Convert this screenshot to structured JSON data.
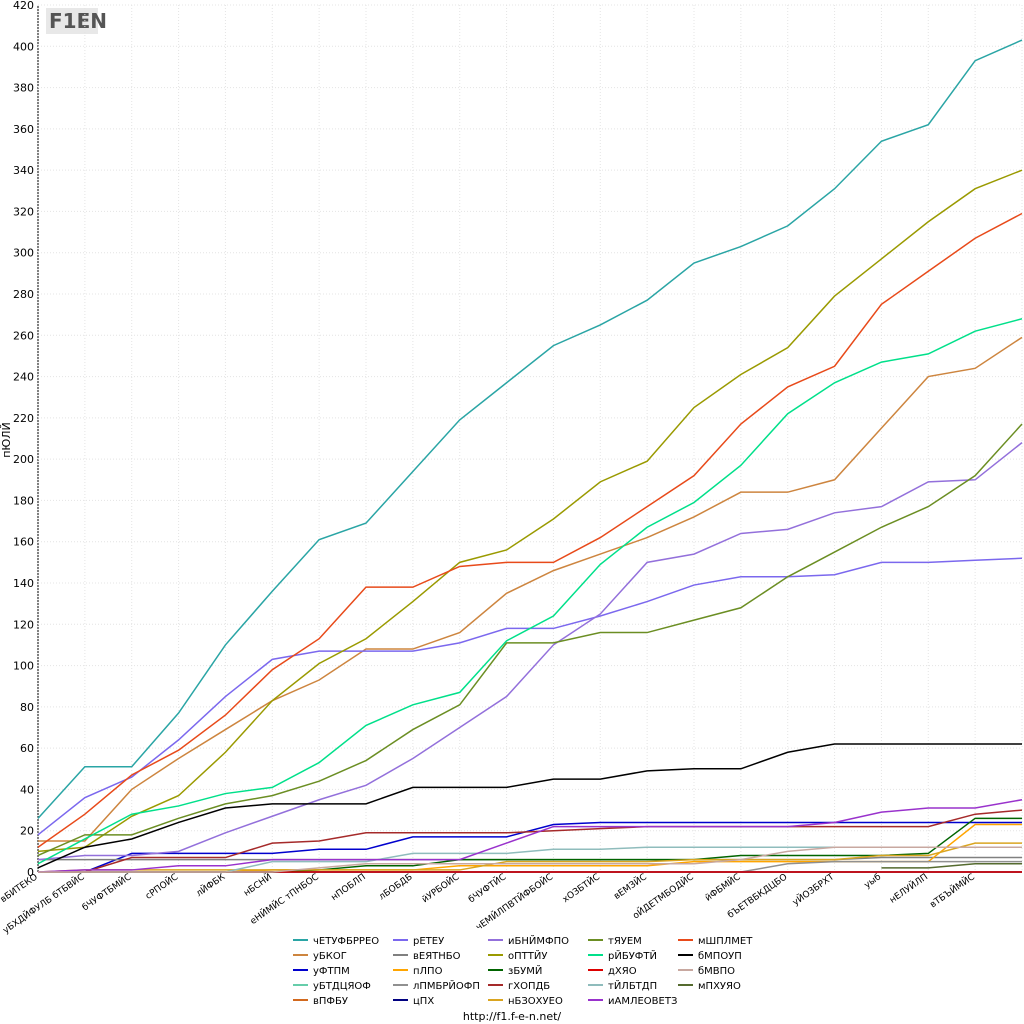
{
  "chart_data": {
    "type": "line",
    "logo": "F1EN",
    "y_label": "пЮЛЙ",
    "footer": "http://f1.f-e-n.net/",
    "grid": true,
    "ylim": [
      0,
      420
    ],
    "yticks": [
      0,
      20,
      40,
      60,
      80,
      100,
      120,
      140,
      160,
      180,
      200,
      220,
      240,
      260,
      280,
      300,
      320,
      340,
      360,
      380,
      400,
      420
    ],
    "categories": [
      "вБИТЕКО",
      "уБХДЙФУЛБ бТБВЙС",
      "бЧУФТБМЙС",
      "сРПОЙС",
      "лЙФБК",
      "нБСНЙ",
      "еНЙМЙС тПНБОС",
      "нПОБЛП",
      "лБОБДБ",
      "йУРБОЙС",
      "бЧУФТЙС",
      "чЕМЙЛПВТЙФБОЙС",
      "хОЗБТЙС",
      "вЕМЗЙС",
      "оЙДЕТМБОДЙС",
      "йФБМЙС",
      "бЪЕТВБКДЦБО",
      "уЙОЗБРХТ",
      "уыб",
      "нЕЛУЙЛП",
      "вТБЪЙМЙС",
      null
    ],
    "series": [
      {
        "name": "чЕТУФБРРЕО",
        "color": "#2aa5a5",
        "values": [
          26,
          51,
          51,
          77,
          110,
          136,
          161,
          169,
          194,
          219,
          237,
          255,
          265,
          277,
          295,
          303,
          313,
          331,
          354,
          362,
          393,
          403
        ]
      },
      {
        "name": "уБКОГ",
        "color": "#cd853f",
        "values": [
          15,
          15,
          40,
          55,
          69,
          83,
          93,
          108,
          108,
          116,
          135,
          146,
          154,
          162,
          172,
          184,
          184,
          190,
          215,
          240,
          244,
          259
        ]
      },
      {
        "name": "уФТПМ",
        "color": "#0000cd",
        "values": [
          0,
          0,
          9,
          9,
          9,
          9,
          11,
          11,
          17,
          17,
          17,
          23,
          24,
          24,
          24,
          24,
          24,
          24,
          24,
          24,
          24,
          24
        ]
      },
      {
        "name": "уБТДЦЯОФ",
        "color": "#66cdaa",
        "values": [
          0,
          0,
          0,
          0,
          0,
          0,
          0,
          0,
          0,
          0,
          0,
          0,
          0,
          0,
          0,
          0,
          0,
          0,
          0,
          0,
          0,
          0
        ]
      },
      {
        "name": "вПФБУ",
        "color": "#d2691e",
        "values": [
          0,
          0,
          0,
          0,
          0,
          0,
          0,
          0,
          0,
          0,
          0,
          0,
          0,
          0,
          0,
          0,
          0,
          0,
          0,
          0,
          0,
          0
        ]
      },
      {
        "name": "рЕТЕУ",
        "color": "#7b68ee",
        "values": [
          18,
          36,
          46,
          64,
          85,
          103,
          107,
          107,
          107,
          111,
          118,
          118,
          124,
          131,
          139,
          143,
          143,
          144,
          150,
          150,
          151,
          152
        ]
      },
      {
        "name": "вЕЯТНБО",
        "color": "#808080",
        "values": [
          6,
          6,
          6,
          6,
          6,
          6,
          6,
          6,
          6,
          6,
          6,
          6,
          6,
          6,
          6,
          6,
          6,
          6,
          7,
          7,
          7,
          7
        ]
      },
      {
        "name": "пЛПО",
        "color": "#ffa500",
        "values": [
          0,
          0,
          0,
          0,
          0,
          1,
          1,
          1,
          1,
          3,
          3,
          3,
          3,
          3,
          5,
          5,
          5,
          5,
          5,
          5,
          23,
          23
        ]
      },
      {
        "name": "лПМБРЙОФП",
        "color": "#909090",
        "values": [
          null,
          null,
          null,
          null,
          null,
          null,
          null,
          null,
          null,
          null,
          null,
          null,
          null,
          null,
          null,
          0,
          4,
          5,
          5,
          5,
          5,
          5
        ]
      },
      {
        "name": "цПХ",
        "color": "#000080",
        "values": [
          0,
          0,
          0,
          0,
          0,
          0,
          0,
          0,
          0,
          0,
          0,
          0,
          0,
          0,
          0,
          0,
          0,
          0,
          0,
          0,
          0,
          0
        ]
      },
      {
        "name": "иБНЙМФПО",
        "color": "#9370db",
        "values": [
          6,
          8,
          8,
          10,
          19,
          27,
          35,
          42,
          55,
          70,
          85,
          110,
          125,
          150,
          154,
          164,
          166,
          174,
          177,
          189,
          190,
          208
        ]
      },
      {
        "name": "оПТТЙУ",
        "color": "#9a9a00",
        "values": [
          10,
          12,
          27,
          37,
          58,
          83,
          101,
          113,
          131,
          150,
          156,
          171,
          189,
          199,
          225,
          241,
          254,
          279,
          297,
          315,
          331,
          340
        ]
      },
      {
        "name": "зБУМЙ",
        "color": "#006400",
        "values": [
          0,
          0,
          0,
          0,
          0,
          0,
          1,
          3,
          3,
          6,
          6,
          6,
          6,
          6,
          6,
          8,
          8,
          8,
          8,
          9,
          26,
          26
        ]
      },
      {
        "name": "гХОПДБ",
        "color": "#a52a2a",
        "values": [
          0,
          0,
          7,
          7,
          7,
          14,
          15,
          19,
          19,
          19,
          19,
          20,
          21,
          22,
          22,
          22,
          22,
          22,
          22,
          22,
          28,
          30
        ]
      },
      {
        "name": "нБЗОХУЕО",
        "color": "#daa520",
        "values": [
          0,
          1,
          1,
          1,
          1,
          1,
          1,
          1,
          1,
          1,
          5,
          5,
          5,
          5,
          6,
          6,
          6,
          6,
          8,
          8,
          14,
          14
        ]
      },
      {
        "name": "тЯУЕМ",
        "color": "#6b8e23",
        "values": [
          8,
          18,
          18,
          26,
          33,
          37,
          44,
          54,
          69,
          81,
          111,
          111,
          116,
          116,
          122,
          128,
          143,
          155,
          167,
          177,
          192,
          217
        ]
      },
      {
        "name": "рЙБУФТЙ",
        "color": "#00e08a",
        "values": [
          4,
          16,
          28,
          32,
          38,
          41,
          53,
          71,
          81,
          87,
          112,
          124,
          149,
          167,
          179,
          197,
          222,
          237,
          247,
          251,
          262,
          268
        ]
      },
      {
        "name": "дХЯО",
        "color": "#dd0000",
        "values": [
          0,
          0,
          0,
          0,
          0,
          0,
          0,
          0,
          0,
          0,
          0,
          0,
          0,
          0,
          0,
          0,
          0,
          0,
          0,
          0,
          0,
          0
        ]
      },
      {
        "name": "тЙЛБТДП",
        "color": "#8fbcbc",
        "values": [
          0,
          0,
          0,
          0,
          0,
          5,
          5,
          5,
          9,
          9,
          9,
          11,
          11,
          12,
          12,
          12,
          12,
          12,
          12,
          12,
          12,
          12
        ]
      },
      {
        "name": "иАМЛЕОВЕТЗ",
        "color": "#9932cc",
        "values": [
          0,
          1,
          1,
          3,
          3,
          6,
          6,
          6,
          6,
          6,
          14,
          22,
          22,
          22,
          22,
          22,
          22,
          24,
          29,
          31,
          31,
          35
        ]
      },
      {
        "name": "мШПЛМЕТ",
        "color": "#e84a1a",
        "values": [
          12,
          28,
          47,
          59,
          76,
          98,
          113,
          138,
          138,
          148,
          150,
          150,
          162,
          177,
          192,
          217,
          235,
          245,
          275,
          291,
          307,
          319
        ]
      },
      {
        "name": "бМПОУП",
        "color": "#000000",
        "values": [
          2,
          12,
          16,
          24,
          31,
          33,
          33,
          33,
          41,
          41,
          41,
          45,
          45,
          49,
          50,
          50,
          58,
          62,
          62,
          62,
          62,
          62
        ]
      },
      {
        "name": "бМВПО",
        "color": "#c8a8a0",
        "values": [
          0,
          0,
          0,
          0,
          0,
          0,
          2,
          4,
          4,
          4,
          4,
          4,
          4,
          4,
          4,
          6,
          10,
          12,
          12,
          12,
          12,
          12
        ]
      },
      {
        "name": "мПХУЯО",
        "color": "#556b2f",
        "values": [
          null,
          null,
          null,
          null,
          null,
          null,
          null,
          null,
          null,
          null,
          null,
          null,
          null,
          null,
          null,
          null,
          null,
          null,
          2,
          2,
          4,
          4
        ]
      }
    ]
  }
}
